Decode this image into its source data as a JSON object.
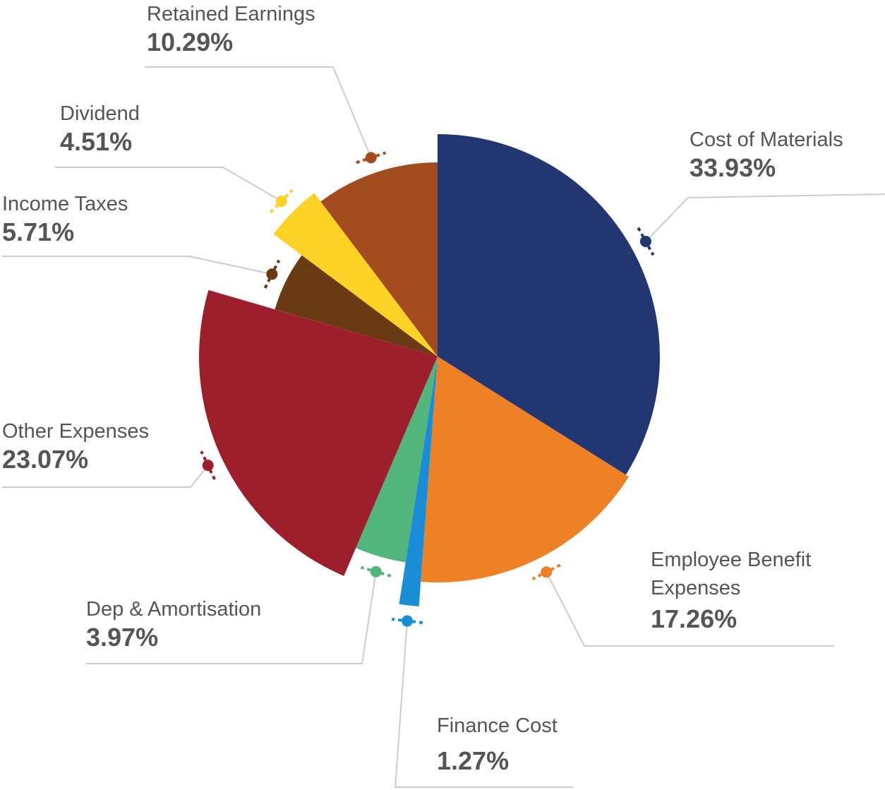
{
  "chart_data": {
    "type": "pie",
    "categories": [
      "Cost of Materials",
      "Employee Benefit Expenses",
      "Finance Cost",
      "Dep & Amortisation",
      "Other Expenses",
      "Income Taxes",
      "Dividend",
      "Retained Earnings"
    ],
    "values": [
      33.93,
      17.26,
      1.27,
      3.97,
      23.07,
      5.71,
      4.51,
      10.29
    ],
    "value_labels": [
      "33.93%",
      "17.26%",
      "1.27%",
      "3.97%",
      "23.07%",
      "5.71%",
      "4.51%",
      "10.29%"
    ],
    "colors": [
      "#223771",
      "#ee8125",
      "#1b8dd6",
      "#52b57c",
      "#9d1f2c",
      "#6a3a13",
      "#fdd226",
      "#a34c20"
    ]
  }
}
